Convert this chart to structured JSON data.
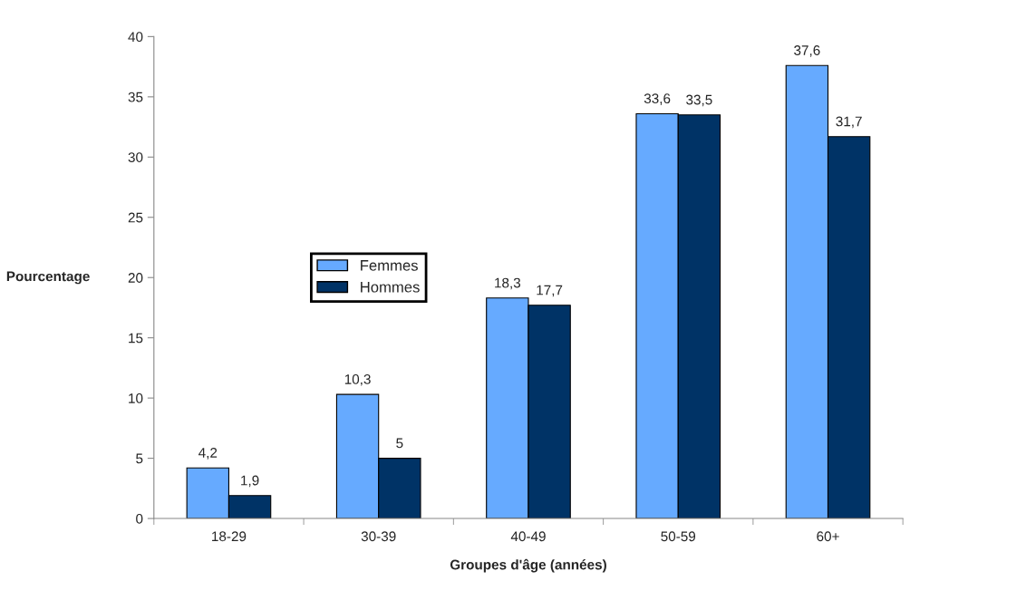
{
  "chart_data": {
    "type": "bar",
    "xlabel": "Groupes d'âge (années)",
    "ylabel": "Pourcentage",
    "categories": [
      "18-29",
      "30-39",
      "40-49",
      "50-59",
      "60+"
    ],
    "series": [
      {
        "name": "Femmes",
        "color": "#66aaff",
        "values": [
          4.2,
          10.3,
          18.3,
          33.6,
          37.6
        ],
        "value_labels": [
          "4,2",
          "10,3",
          "18,3",
          "33,6",
          "37,6"
        ]
      },
      {
        "name": "Hommes",
        "color": "#003366",
        "values": [
          1.9,
          5,
          17.7,
          33.5,
          31.7
        ],
        "value_labels": [
          "1,9",
          "5",
          "17,7",
          "33,5",
          "31,7"
        ]
      }
    ],
    "ylim": [
      0,
      40
    ],
    "yticks": [
      0,
      5,
      10,
      15,
      20,
      25,
      30,
      35,
      40
    ],
    "grid": false,
    "legend": "center left"
  }
}
